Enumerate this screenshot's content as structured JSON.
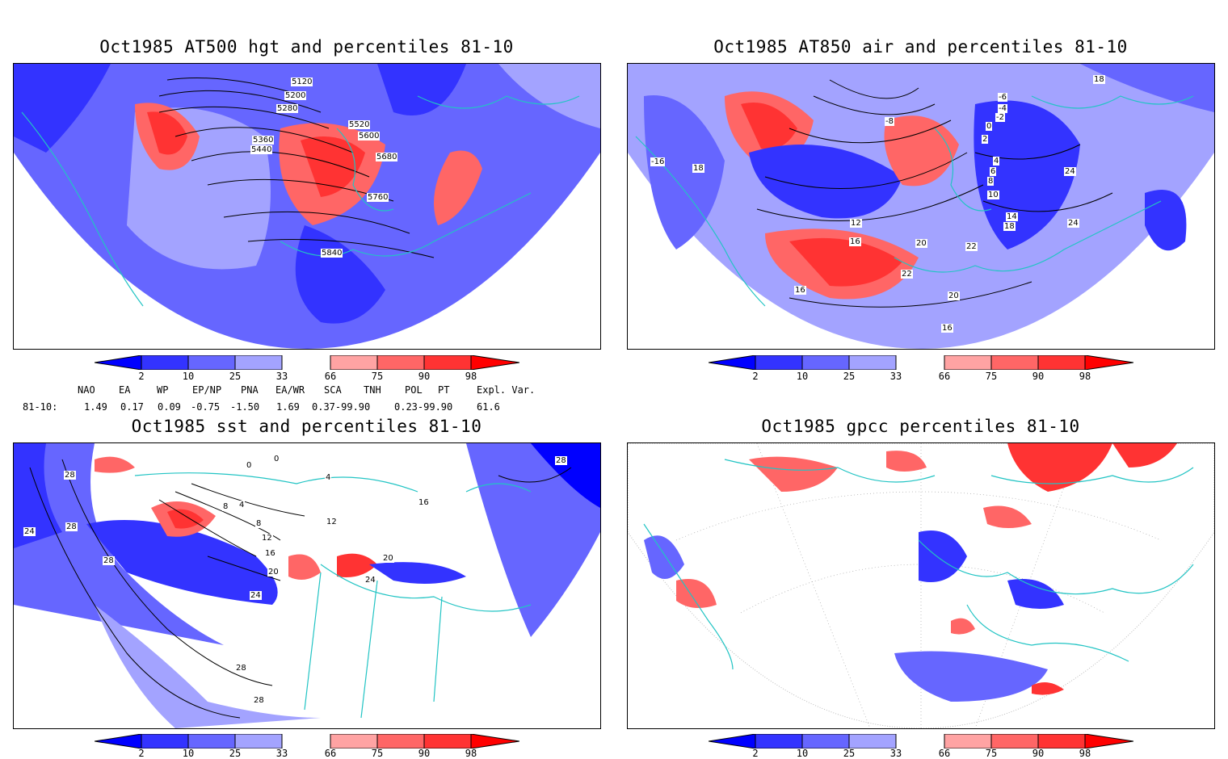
{
  "panels": [
    {
      "id": "hgt",
      "title": "Oct1985 AT500 hgt and percentiles 81-10",
      "contour_labels": [
        "5120",
        "5200",
        "5280",
        "5360",
        "5440",
        "5520",
        "5600",
        "5680",
        "5760",
        "5840"
      ]
    },
    {
      "id": "air",
      "title": "Oct1985 AT850 air and percentiles 81-10",
      "contour_labels": [
        "-6",
        "-4",
        "-2",
        "0",
        "2",
        "4",
        "6",
        "8",
        "10",
        "12",
        "14",
        "16",
        "18",
        "20",
        "22",
        "24",
        "-8",
        "-16",
        "16",
        "18",
        "20",
        "22",
        "24",
        "18",
        "16"
      ]
    },
    {
      "id": "sst",
      "title": "Oct1985 sst and percentiles 81-10",
      "contour_labels": [
        "0",
        "0",
        "4",
        "8",
        "4",
        "8",
        "12",
        "16",
        "20",
        "24",
        "28",
        "28",
        "24",
        "28",
        "28",
        "20",
        "24",
        "16",
        "12",
        "28",
        "28"
      ]
    },
    {
      "id": "gpcc",
      "title": "Oct1985 gpcc percentiles 81-10",
      "contour_labels": []
    }
  ],
  "colorbar": {
    "ticks": [
      "2",
      "10",
      "25",
      "33",
      "66",
      "75",
      "90",
      "98"
    ],
    "colors": {
      "below_2": "#0000ff",
      "2_10": "#3333ff",
      "10_25": "#6666ff",
      "25_33": "#a3a3ff",
      "33_66": "#ffffff",
      "66_75": "#ffa3a3",
      "75_90": "#ff6666",
      "90_98": "#ff3333",
      "above_98": "#ff0000"
    }
  },
  "indices": {
    "headers": [
      "NAO",
      "EA",
      "WP",
      "EP/NP",
      "PNA",
      "EA/WR",
      "SCA",
      "TNH",
      "POL",
      "PT",
      "Expl. Var."
    ],
    "row_label": "81-10:",
    "values": [
      "1.49",
      "0.17",
      "0.09",
      "-0.75",
      "-1.50",
      "1.69",
      "0.37-99.90",
      "0.23-99.90",
      "61.6"
    ]
  },
  "colors": {
    "coastline": "#22c4c4",
    "contour": "#000000"
  }
}
